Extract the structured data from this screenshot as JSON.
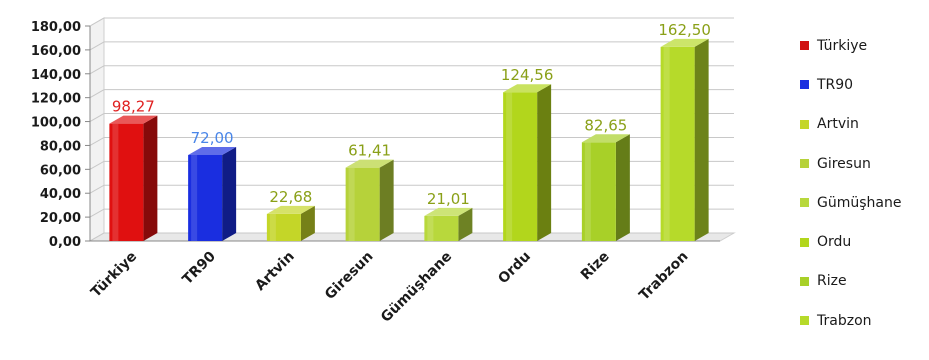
{
  "chart_data": {
    "type": "bar",
    "categories": [
      "Türkiye",
      "TR90",
      "Artvin",
      "Giresun",
      "Gümüşhane",
      "Ordu",
      "Rize",
      "Trabzon"
    ],
    "values": [
      98.27,
      72.0,
      22.68,
      61.41,
      21.01,
      124.56,
      82.65,
      162.5
    ],
    "value_labels": [
      "98,27",
      "72,00",
      "22,68",
      "61,41",
      "21,01",
      "124,56",
      "82,65",
      "162,50"
    ],
    "yticks": [
      "0,00",
      "20,00",
      "40,00",
      "60,00",
      "80,00",
      "100,00",
      "120,00",
      "140,00",
      "160,00",
      "180,00"
    ],
    "ylim": [
      0,
      180
    ],
    "grid": true,
    "legend_position": "right",
    "bar_colors": [
      "#e01010",
      "#1a2ee0",
      "#c4d628",
      "#b6d23a",
      "#b8d83c",
      "#b2d61c",
      "#a8d028",
      "#b6da2a"
    ],
    "label_colors": [
      "#e02020",
      "#4a86e8",
      "#8aa018",
      "#8aa018",
      "#8aa018",
      "#8aa018",
      "#8aa018",
      "#8aa018"
    ],
    "legend": [
      {
        "label": "Türkiye",
        "color": "#d01010"
      },
      {
        "label": "TR90",
        "color": "#1a2ee0"
      },
      {
        "label": "Artvin",
        "color": "#c4d628"
      },
      {
        "label": "Giresun",
        "color": "#b6d23a"
      },
      {
        "label": "Gümüşhane",
        "color": "#b8d83c"
      },
      {
        "label": "Ordu",
        "color": "#b2d61c"
      },
      {
        "label": "Rize",
        "color": "#a8d028"
      },
      {
        "label": "Trabzon",
        "color": "#b6da2a"
      }
    ]
  }
}
